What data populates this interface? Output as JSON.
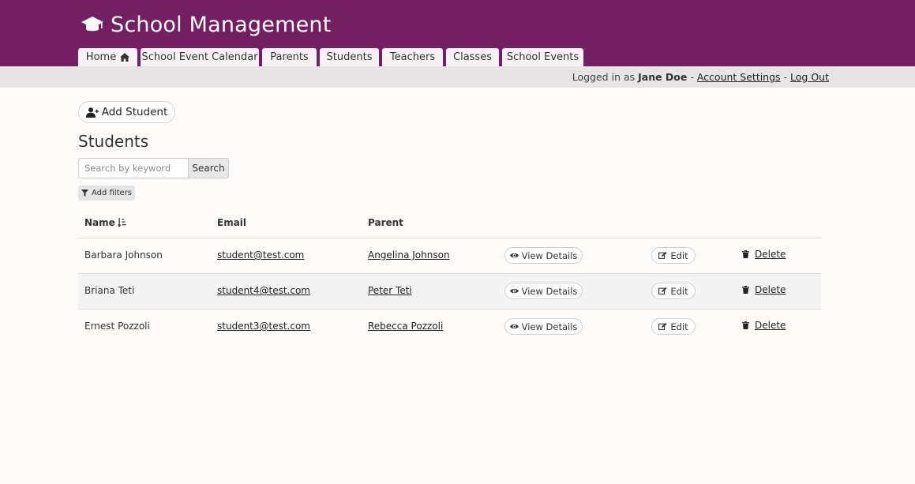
{
  "app": {
    "title": "School Management",
    "brand_icon": "graduation-cap-icon"
  },
  "nav": {
    "tabs": [
      {
        "label": "Home",
        "icon": "home-icon"
      },
      {
        "label": "School Event Calendar"
      },
      {
        "label": "Parents"
      },
      {
        "label": "Students"
      },
      {
        "label": "Teachers"
      },
      {
        "label": "Classes"
      },
      {
        "label": "School Events"
      }
    ]
  },
  "session": {
    "prefix": "Logged in as ",
    "user": "Jane Doe",
    "sep1": " - ",
    "account_settings": "Account Settings",
    "sep2": " - ",
    "logout": "Log Out"
  },
  "toolbar": {
    "add_student_label": "Add Student",
    "add_student_icon": "user-plus-icon"
  },
  "page": {
    "heading": "Students"
  },
  "search": {
    "placeholder": "Search by keyword",
    "value": "",
    "button_label": "Search"
  },
  "filters": {
    "label": "Add filters",
    "icon": "filter-icon"
  },
  "table": {
    "columns": {
      "name": "Name",
      "email": "Email",
      "parent": "Parent"
    },
    "sort_icon": "sort-alpha-down-icon",
    "actions": {
      "view": "View Details",
      "edit": "Edit",
      "delete": "Delete"
    },
    "rows": [
      {
        "name": "Barbara Johnson",
        "email": "student@test.com",
        "parent": "Angelina Johnson"
      },
      {
        "name": "Briana Teti",
        "email": "student4@test.com",
        "parent": "Peter Teti"
      },
      {
        "name": "Ernest Pozzoli",
        "email": "student3@test.com",
        "parent": "Rebecca Pozzoli"
      }
    ]
  },
  "colors": {
    "header_bg": "#731f64",
    "subbar_bg": "#e6e4e5",
    "page_bg": "#fdfcfb"
  }
}
